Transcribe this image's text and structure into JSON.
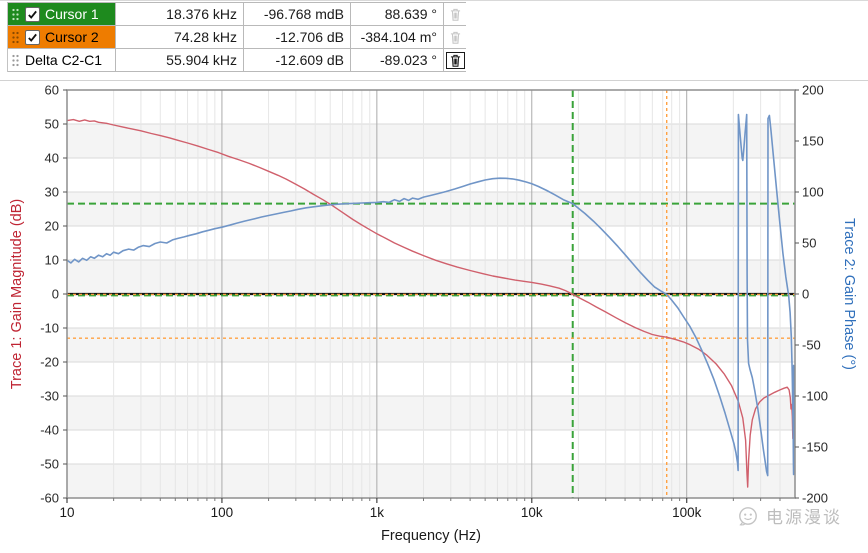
{
  "cursor_table": {
    "rows": [
      {
        "name": "Cursor 1",
        "row_color": "#1e8a1e",
        "text_color": "#ffffff",
        "has_checkbox": true,
        "checked": true,
        "freq": "18.376 kHz",
        "mag": "-96.768 mdB",
        "phase": "88.639 °",
        "trash_enabled": false,
        "handle_color": "#bfe4bf"
      },
      {
        "name": "Cursor 2",
        "row_color": "#ee7c00",
        "text_color": "#000000",
        "has_checkbox": true,
        "checked": true,
        "freq": "74.28 kHz",
        "mag": "-12.706 dB",
        "phase": "-384.104 m°",
        "trash_enabled": false,
        "handle_color": "#8a4a00"
      },
      {
        "name": "Delta C2-C1",
        "row_color": "#ffffff",
        "text_color": "#000000",
        "has_checkbox": false,
        "checked": false,
        "freq": "55.904 kHz",
        "mag": "-12.609 dB",
        "phase": "-89.023 °",
        "trash_enabled": true,
        "handle_color": "#9a9a9a"
      }
    ]
  },
  "watermark": {
    "text": "电源漫谈"
  },
  "chart_data": {
    "type": "line",
    "x_axis": {
      "label": "Frequency (Hz)",
      "scale": "log",
      "min": 10,
      "max": 500000,
      "ticks": [
        {
          "f": 10,
          "label": "10"
        },
        {
          "f": 100,
          "label": "100"
        },
        {
          "f": 1000,
          "label": "1k"
        },
        {
          "f": 10000,
          "label": "10k"
        },
        {
          "f": 100000,
          "label": "100k"
        }
      ]
    },
    "y_left": {
      "label": "Trace 1: Gain Magnitude (dB)",
      "min": -60,
      "max": 60,
      "tick_step": 10,
      "title_color": "#bf2433"
    },
    "y_right": {
      "label": "Trace 2: Gain Phase (°)",
      "min": -200,
      "max": 200,
      "tick_step": 50,
      "title_color": "#2f6fbb"
    },
    "grid": {
      "band_fill": "#f4f4f4",
      "h_line": "#dadada",
      "minor_v": "#e6e6e6",
      "decade_v": "#ababab",
      "zero_line": "#141414",
      "border": "#8e8e8e"
    },
    "cursors": [
      {
        "name": "Cursor 1",
        "color": "#3aa33a",
        "dash": "7,4",
        "width": 2,
        "freq": 18376,
        "mag_db": -0.0968,
        "phase_deg": 88.639
      },
      {
        "name": "Cursor 2",
        "color": "#ffa142",
        "dash": "3,3",
        "width": 1.4,
        "freq": 74280,
        "mag_db": -12.706,
        "phase_deg": -0.384
      }
    ],
    "series": [
      {
        "name": "Gain Magnitude",
        "axis": "left",
        "color": "#d0606c",
        "points": [
          [
            10,
            51
          ],
          [
            11,
            51.3
          ],
          [
            12,
            50.8
          ],
          [
            13,
            51.2
          ],
          [
            14,
            50.8
          ],
          [
            15,
            50.9
          ],
          [
            16,
            50.5
          ],
          [
            18,
            50.2
          ],
          [
            20,
            49.7
          ],
          [
            23,
            49.1
          ],
          [
            26,
            48.6
          ],
          [
            30,
            48
          ],
          [
            35,
            47.2
          ],
          [
            40,
            46.6
          ],
          [
            46,
            45.9
          ],
          [
            52,
            45.2
          ],
          [
            60,
            44.4
          ],
          [
            70,
            43.5
          ],
          [
            82,
            42.5
          ],
          [
            95,
            41.6
          ],
          [
            110,
            40.5
          ],
          [
            130,
            39.4
          ],
          [
            150,
            38.4
          ],
          [
            175,
            37.2
          ],
          [
            200,
            36.1
          ],
          [
            230,
            34.9
          ],
          [
            260,
            33.8
          ],
          [
            300,
            32.3
          ],
          [
            340,
            30.9
          ],
          [
            390,
            29.3
          ],
          [
            450,
            27.7
          ],
          [
            520,
            25.9
          ],
          [
            600,
            24
          ],
          [
            700,
            21.9
          ],
          [
            800,
            20.3
          ],
          [
            900,
            18.9
          ],
          [
            1000,
            17.7
          ],
          [
            1150,
            16.3
          ],
          [
            1300,
            15
          ],
          [
            1500,
            13.7
          ],
          [
            1700,
            12.6
          ],
          [
            2000,
            11.3
          ],
          [
            2400,
            9.9
          ],
          [
            2800,
            8.9
          ],
          [
            3300,
            7.9
          ],
          [
            4000,
            6.9
          ],
          [
            4800,
            6
          ],
          [
            5600,
            5.3
          ],
          [
            6600,
            4.7
          ],
          [
            7800,
            4.1
          ],
          [
            9000,
            3.7
          ],
          [
            10000,
            3.4
          ],
          [
            11500,
            2.9
          ],
          [
            13000,
            2.4
          ],
          [
            15000,
            1.7
          ],
          [
            16500,
            1
          ],
          [
            18376,
            -0.1
          ],
          [
            20000,
            -1
          ],
          [
            23000,
            -2.4
          ],
          [
            26000,
            -3.8
          ],
          [
            30000,
            -5.3
          ],
          [
            35000,
            -7
          ],
          [
            40000,
            -8.4
          ],
          [
            46000,
            -9.8
          ],
          [
            53000,
            -11
          ],
          [
            60000,
            -11.9
          ],
          [
            67000,
            -12.4
          ],
          [
            74280,
            -12.7
          ],
          [
            85000,
            -13.4
          ],
          [
            95000,
            -14.1
          ],
          [
            105000,
            -14.9
          ],
          [
            120000,
            -16.3
          ],
          [
            135000,
            -18
          ],
          [
            155000,
            -20.6
          ],
          [
            175000,
            -23.6
          ],
          [
            195000,
            -27
          ],
          [
            215000,
            -31.5
          ],
          [
            230000,
            -36.5
          ],
          [
            240000,
            -43
          ],
          [
            245000,
            -53
          ],
          [
            247500,
            -56.8
          ],
          [
            251000,
            -49
          ],
          [
            257000,
            -41.5
          ],
          [
            265000,
            -37
          ],
          [
            278000,
            -33.8
          ],
          [
            295000,
            -31.8
          ],
          [
            315000,
            -30.6
          ],
          [
            340000,
            -29.8
          ],
          [
            370000,
            -28.9
          ],
          [
            400000,
            -28.2
          ],
          [
            425000,
            -27.7
          ],
          [
            445000,
            -27.4
          ],
          [
            458000,
            -28.2
          ],
          [
            466000,
            -30.5
          ],
          [
            471000,
            -33.8
          ],
          [
            476000,
            -32.5
          ],
          [
            480000,
            -36
          ],
          [
            484000,
            -42.5
          ],
          [
            487000,
            -38.5
          ],
          [
            490000,
            -41
          ],
          [
            493000,
            -44.5
          ],
          [
            496000,
            -40
          ],
          [
            498000,
            -43.5
          ],
          [
            500000,
            -45
          ]
        ]
      },
      {
        "name": "Gain Phase",
        "axis": "right",
        "color": "#7095c7",
        "points": [
          [
            10,
            33
          ],
          [
            10.6,
            30.5
          ],
          [
            11.2,
            34
          ],
          [
            11.9,
            31.5
          ],
          [
            12.6,
            35
          ],
          [
            13.4,
            33
          ],
          [
            14.2,
            36.5
          ],
          [
            15,
            35
          ],
          [
            16,
            38
          ],
          [
            17,
            36.5
          ],
          [
            18,
            39.5
          ],
          [
            19,
            38
          ],
          [
            20,
            41
          ],
          [
            21.5,
            39.5
          ],
          [
            23,
            42.5
          ],
          [
            25,
            44
          ],
          [
            27,
            43
          ],
          [
            29,
            46
          ],
          [
            31,
            47.5
          ],
          [
            34,
            46.5
          ],
          [
            37,
            49.5
          ],
          [
            40,
            51
          ],
          [
            44,
            50
          ],
          [
            48,
            53
          ],
          [
            52,
            54.5
          ],
          [
            57,
            56
          ],
          [
            62,
            57.5
          ],
          [
            68,
            59
          ],
          [
            75,
            61
          ],
          [
            82,
            62.5
          ],
          [
            90,
            64
          ],
          [
            100,
            65.5
          ],
          [
            112,
            67.5
          ],
          [
            125,
            69.5
          ],
          [
            140,
            71.5
          ],
          [
            160,
            73.5
          ],
          [
            180,
            75.5
          ],
          [
            200,
            77
          ],
          [
            225,
            78.5
          ],
          [
            250,
            80
          ],
          [
            280,
            81.5
          ],
          [
            310,
            83
          ],
          [
            350,
            84.5
          ],
          [
            390,
            85.5
          ],
          [
            440,
            86.5
          ],
          [
            500,
            87.5
          ],
          [
            560,
            88
          ],
          [
            630,
            88.5
          ],
          [
            700,
            88.8
          ],
          [
            800,
            89.2
          ],
          [
            900,
            89.5
          ],
          [
            1000,
            89.8
          ],
          [
            1100,
            90.5
          ],
          [
            1200,
            89.8
          ],
          [
            1300,
            92.5
          ],
          [
            1400,
            90.8
          ],
          [
            1500,
            93.5
          ],
          [
            1600,
            91.8
          ],
          [
            1700,
            94
          ],
          [
            1850,
            92.8
          ],
          [
            2000,
            95
          ],
          [
            2200,
            96.5
          ],
          [
            2500,
            98.5
          ],
          [
            2800,
            100.5
          ],
          [
            3200,
            103
          ],
          [
            3600,
            105.5
          ],
          [
            4000,
            107.8
          ],
          [
            4500,
            110
          ],
          [
            5000,
            111.8
          ],
          [
            5600,
            113
          ],
          [
            6200,
            113.5
          ],
          [
            6800,
            113.4
          ],
          [
            7500,
            112.8
          ],
          [
            8300,
            111.6
          ],
          [
            9200,
            109.8
          ],
          [
            10000,
            108
          ],
          [
            11000,
            105.5
          ],
          [
            12500,
            101.5
          ],
          [
            14000,
            97.5
          ],
          [
            16000,
            92.5
          ],
          [
            18376,
            88.6
          ],
          [
            20000,
            84
          ],
          [
            22000,
            79
          ],
          [
            25000,
            71.5
          ],
          [
            28000,
            64
          ],
          [
            32000,
            55
          ],
          [
            36000,
            46.5
          ],
          [
            40000,
            38.5
          ],
          [
            45000,
            29.5
          ],
          [
            50000,
            21.5
          ],
          [
            56000,
            13.5
          ],
          [
            62000,
            7
          ],
          [
            68000,
            3
          ],
          [
            74280,
            -0.4
          ],
          [
            80000,
            -6
          ],
          [
            88000,
            -14
          ],
          [
            96000,
            -23
          ],
          [
            105000,
            -32
          ],
          [
            115000,
            -43
          ],
          [
            125000,
            -55
          ],
          [
            137000,
            -69
          ],
          [
            150000,
            -84
          ],
          [
            163000,
            -100
          ],
          [
            177000,
            -117
          ],
          [
            190000,
            -133
          ],
          [
            202000,
            -147
          ],
          [
            208000,
            -156
          ],
          [
            213000,
            -166
          ],
          [
            214500,
            -173
          ],
          [
            215500,
            176
          ],
          [
            219000,
            163
          ],
          [
            224000,
            146
          ],
          [
            228000,
            133
          ],
          [
            230000,
            131
          ],
          [
            234000,
            143
          ],
          [
            238000,
            158
          ],
          [
            242000,
            170
          ],
          [
            244000,
            176
          ],
          [
            244500,
            100
          ],
          [
            245500,
            20
          ],
          [
            247000,
            -45
          ],
          [
            251000,
            -68
          ],
          [
            256000,
            -74
          ],
          [
            265000,
            -82
          ],
          [
            275000,
            -95
          ],
          [
            288000,
            -113
          ],
          [
            300000,
            -132
          ],
          [
            312000,
            -152
          ],
          [
            322000,
            -166
          ],
          [
            328000,
            -174
          ],
          [
            333000,
            -178
          ],
          [
            334500,
            172
          ],
          [
            342000,
            175
          ],
          [
            350000,
            160
          ],
          [
            365000,
            131
          ],
          [
            382000,
            99
          ],
          [
            400000,
            68
          ],
          [
            418000,
            40
          ],
          [
            436000,
            17
          ],
          [
            455000,
            -2
          ],
          [
            465000,
            -18
          ],
          [
            473000,
            -42
          ],
          [
            479000,
            -72
          ],
          [
            483500,
            -105
          ],
          [
            486500,
            -138
          ],
          [
            488500,
            -165
          ],
          [
            489500,
            -177
          ],
          [
            490500,
            -70
          ],
          [
            492000,
            -93
          ],
          [
            493500,
            -82
          ],
          [
            495000,
            -120
          ],
          [
            496500,
            -100
          ],
          [
            498000,
            -132
          ],
          [
            500000,
            -150
          ]
        ]
      }
    ]
  }
}
